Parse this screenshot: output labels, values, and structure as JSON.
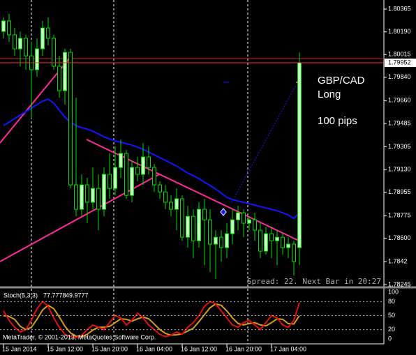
{
  "chart_data": [
    {
      "type": "candlestick",
      "categories": [
        "15 Jan 2014",
        null,
        null,
        null,
        null,
        null,
        null,
        null,
        "15 Jan 12:00",
        null,
        null,
        null,
        null,
        null,
        null,
        null,
        "15 Jan 20:00",
        null,
        null,
        null,
        null,
        null,
        null,
        null,
        "16 Jan 04:00",
        null,
        null,
        null,
        null,
        null,
        null,
        null,
        "16 Jan 12:00",
        null,
        null,
        null,
        null,
        null,
        null,
        null,
        "16 Jan 20:00",
        null,
        null,
        null,
        null,
        null,
        null,
        null,
        "17 Jan 04:00",
        null,
        null,
        null,
        null,
        null
      ],
      "open": [
        1.80193,
        1.80274,
        1.80167,
        1.80059,
        1.8014,
        1.80005,
        1.79898,
        1.80059,
        1.8022,
        1.8014,
        1.79925,
        1.79737,
        1.80032,
        1.79012,
        1.78824,
        1.79012,
        1.78878,
        1.78985,
        1.78824,
        1.79093,
        1.78985,
        1.79146,
        1.79254,
        1.78931,
        1.79146,
        1.79093,
        1.79227,
        1.79146,
        1.79012,
        1.78958,
        1.78878,
        1.78824,
        1.78905,
        1.78609,
        1.7877,
        1.78582,
        1.78824,
        1.78743,
        1.78556,
        1.78609,
        1.78529,
        1.78636,
        1.78743,
        1.78797,
        1.78717,
        1.78743,
        1.78663,
        1.78502,
        1.78636,
        1.78582,
        1.78609,
        1.78529,
        1.78556,
        1.78529
      ],
      "close": [
        1.80274,
        1.80167,
        1.80059,
        1.8014,
        1.80005,
        1.79898,
        1.80059,
        1.8022,
        1.8014,
        1.79925,
        1.79737,
        1.80032,
        1.79012,
        1.78824,
        1.79012,
        1.78878,
        1.78985,
        1.78824,
        1.79093,
        1.78985,
        1.79146,
        1.79254,
        1.78931,
        1.79146,
        1.79093,
        1.79227,
        1.79146,
        1.79012,
        1.78958,
        1.78878,
        1.78824,
        1.78905,
        1.78609,
        1.7877,
        1.78582,
        1.78824,
        1.78743,
        1.78556,
        1.78609,
        1.78529,
        1.78636,
        1.78743,
        1.78797,
        1.78717,
        1.78743,
        1.78663,
        1.78502,
        1.78636,
        1.78582,
        1.78609,
        1.78529,
        1.78556,
        1.78421,
        1.79952
      ],
      "high": [
        1.80301,
        1.80328,
        1.8022,
        1.80193,
        1.80167,
        1.80113,
        1.8014,
        1.80274,
        1.80301,
        1.80167,
        1.80005,
        1.80059,
        1.80059,
        1.79683,
        1.79093,
        1.79066,
        1.79146,
        1.79093,
        1.79146,
        1.79254,
        1.79307,
        1.79361,
        1.7928,
        1.792,
        1.79227,
        1.79334,
        1.79307,
        1.79173,
        1.79039,
        1.79012,
        1.78931,
        1.78985,
        1.78931,
        1.78851,
        1.78824,
        1.78878,
        1.78905,
        1.78824,
        1.78663,
        1.78663,
        1.78717,
        1.78824,
        1.78851,
        1.78824,
        1.7877,
        1.78797,
        1.78717,
        1.7869,
        1.7869,
        1.78663,
        1.78636,
        1.78609,
        1.78582,
        1.80032
      ],
      "low": [
        1.8014,
        1.80113,
        1.80005,
        1.79925,
        1.79898,
        1.79522,
        1.79844,
        1.80005,
        1.80086,
        1.79898,
        1.79683,
        1.7963,
        1.78985,
        1.7877,
        1.7877,
        1.78717,
        1.78824,
        1.78663,
        1.7877,
        1.78905,
        1.78931,
        1.79066,
        1.78905,
        1.78878,
        1.79039,
        1.79012,
        1.79093,
        1.78958,
        1.78905,
        1.78824,
        1.7877,
        1.78663,
        1.78582,
        1.78529,
        1.78448,
        1.78529,
        1.78394,
        1.78341,
        1.78287,
        1.78421,
        1.78448,
        1.78556,
        1.78663,
        1.78609,
        1.78663,
        1.78582,
        1.78448,
        1.78475,
        1.78448,
        1.78394,
        1.78475,
        1.78448,
        1.78314,
        1.78394
      ],
      "up_color": "#ccffcc",
      "down_color": "#000000",
      "wick_color": "#00dd00",
      "series": [
        {
          "color": "#1414ff",
          "values": [
            1.79468,
            1.79495,
            1.79522,
            1.79549,
            1.79576,
            1.79603,
            1.7963,
            1.79656,
            1.79672,
            1.7964,
            1.79587,
            1.79533,
            1.79495,
            1.79468,
            1.79452,
            1.79442,
            1.79425,
            1.79404,
            1.79382,
            1.79366,
            1.7935,
            1.7934,
            1.79329,
            1.79318,
            1.79302,
            1.79286,
            1.79264,
            1.79243,
            1.79221,
            1.792,
            1.79178,
            1.79157,
            1.7913,
            1.79103,
            1.79082,
            1.7906,
            1.79033,
            1.79007,
            1.7898,
            1.78948,
            1.78915,
            1.78899,
            1.78888,
            1.78878,
            1.78867,
            1.78856,
            1.78845,
            1.78835,
            1.78824,
            1.78813,
            1.78797,
            1.78781,
            1.78754,
            1.78797
          ]
        }
      ],
      "ylim": [
        1.78234,
        1.80435
      ],
      "yticks": [
        1.80365,
        {
          "value": 1.8019,
          "label": "1.80190"
        },
        1.80015,
        {
          "value": 1.7984,
          "label": "1.79840"
        },
        {
          "value": 1.7966,
          "label": "1.79660"
        },
        1.79485,
        1.79305,
        {
          "value": 1.7913,
          "label": "1.79130"
        },
        1.78955,
        1.78775,
        {
          "value": 1.786,
          "label": "1.78600"
        },
        1.7842,
        1.78245
      ],
      "annotations": [
        "GBP/CAD",
        "Long",
        "100 pips"
      ],
      "status": "Spread: 22. Next Bar in 20:27"
    },
    {
      "type": "line",
      "title": "Stoch(5,3,3)",
      "series": [
        {
          "color": "#e01010",
          "values": [
            60,
            40,
            25,
            15,
            20,
            40,
            65,
            80,
            70,
            45,
            25,
            10,
            5,
            3,
            8,
            20,
            30,
            25,
            20,
            35,
            50,
            45,
            30,
            40,
            55,
            45,
            30,
            20,
            10,
            5,
            8,
            15,
            10,
            25,
            35,
            50,
            70,
            80,
            75,
            60,
            45,
            30,
            25,
            35,
            40,
            30,
            20,
            35,
            50,
            45,
            30,
            25,
            40,
            77.7778
          ]
        },
        {
          "color": "#d4a017",
          "values": [
            50,
            48,
            42,
            27,
            20,
            25,
            42,
            62,
            72,
            65,
            47,
            27,
            13,
            6,
            5,
            10,
            19,
            25,
            25,
            27,
            35,
            43,
            42,
            38,
            43,
            47,
            43,
            32,
            20,
            12,
            8,
            9,
            11,
            17,
            23,
            37,
            52,
            67,
            75,
            72,
            60,
            45,
            33,
            30,
            33,
            35,
            30,
            28,
            35,
            43,
            42,
            33,
            32,
            49.9777
          ]
        }
      ],
      "ylim": [
        0,
        100
      ],
      "yticks": [
        100,
        80,
        50,
        20,
        0
      ],
      "copyright": "MetaTrader, © 2001-2013, MetaQuotes Software Corp."
    }
  ]
}
